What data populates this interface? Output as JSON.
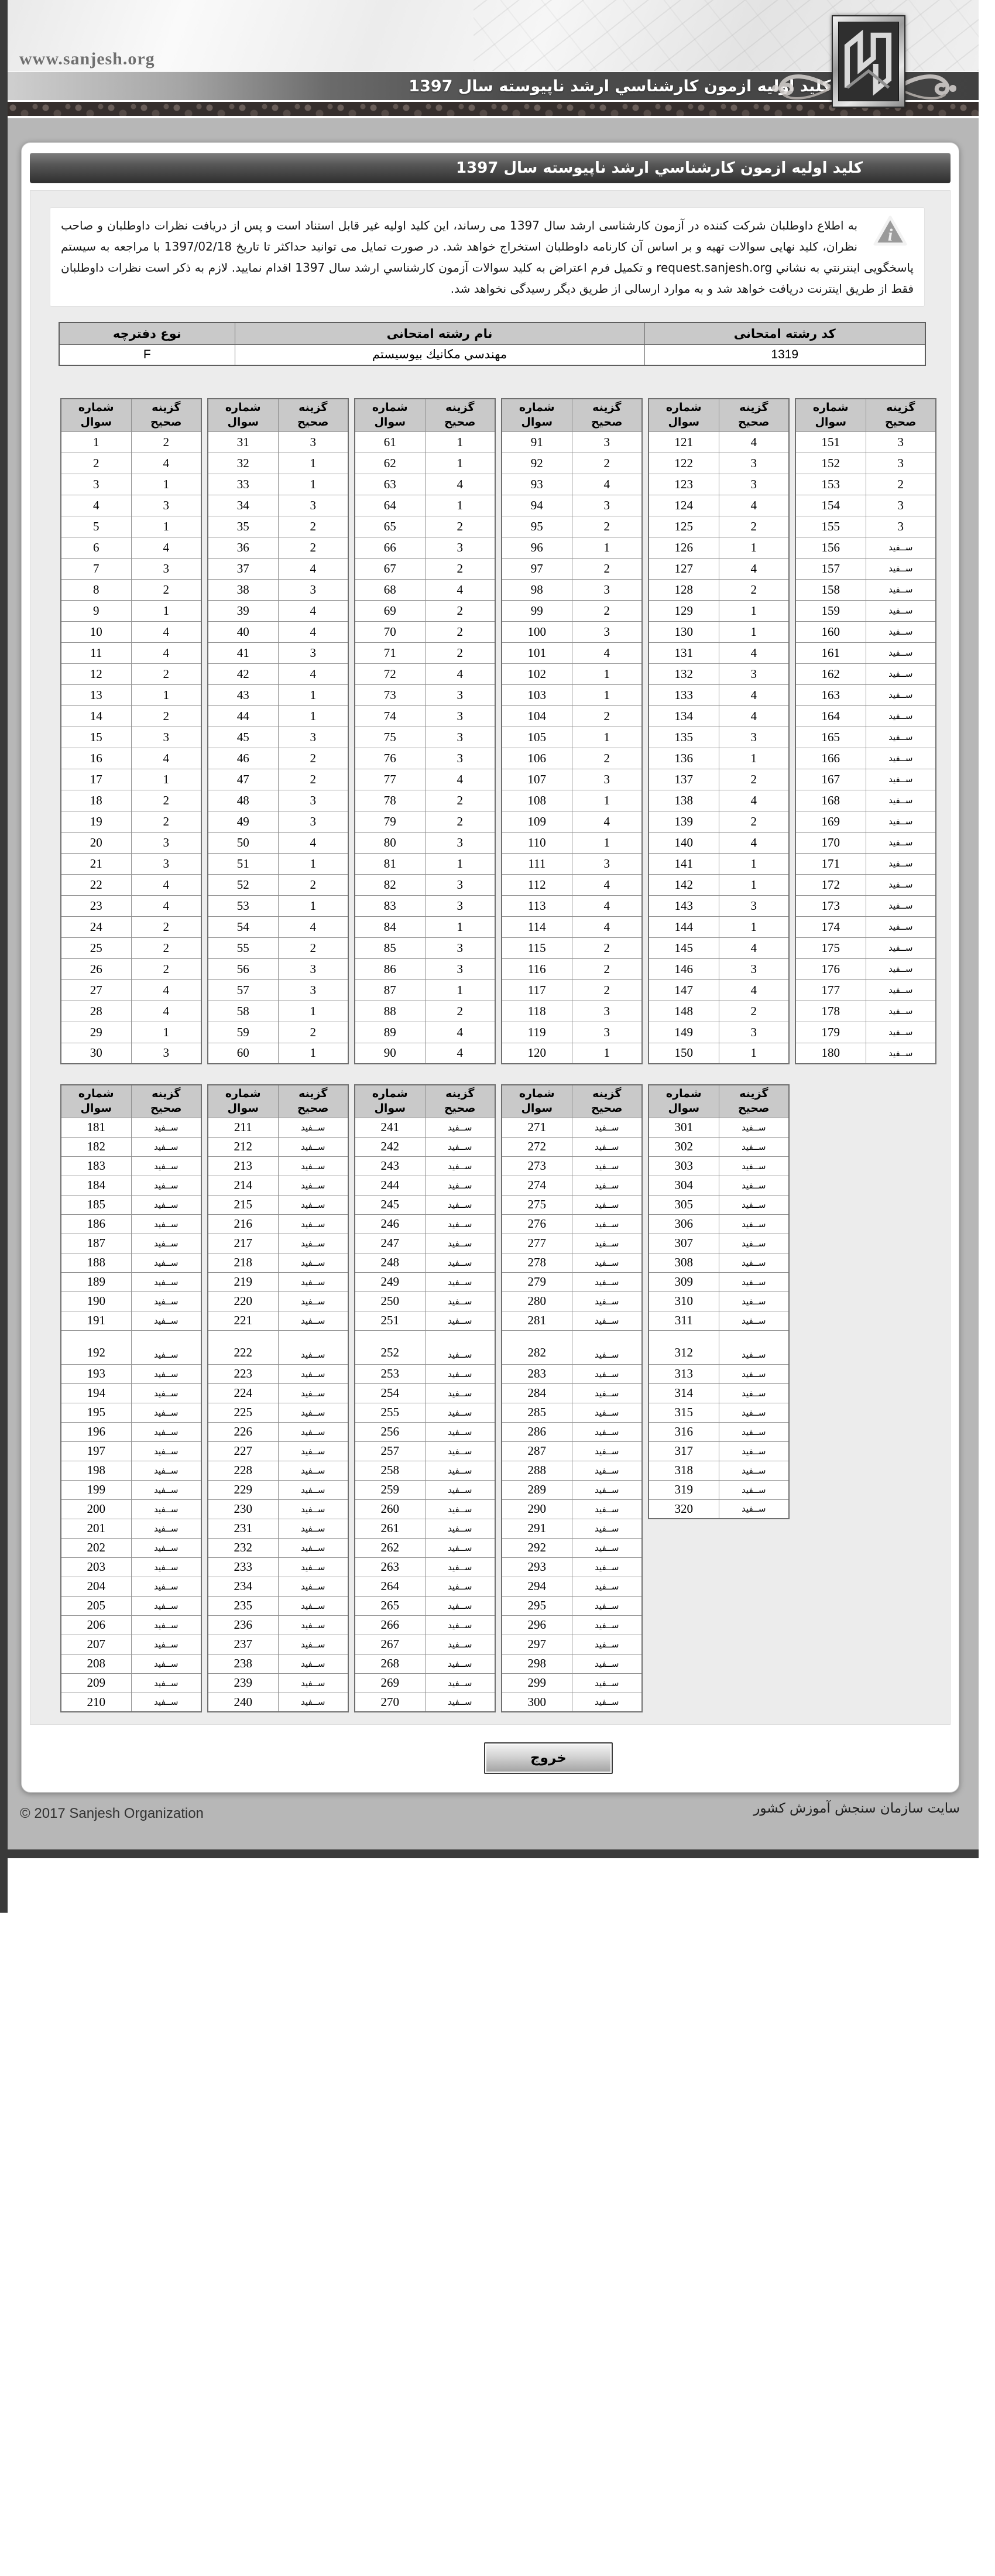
{
  "page": {
    "url_label": "www.sanjesh.org",
    "banner_title": "کلید اولیه ازمون کارشناسي ارشد ناپیوسته سال 1397",
    "content_title": "کلید اولیه ازمون کارشناسي ارشد ناپیوسته سال 1397",
    "notice": "به اطلاع داوطلبان شرکت کننده در آزمون کارشناسی ارشد سال 1397 می رساند، این کلید اولیه غیر قابل استناد است و پس از دریافت نظرات داوطلبان و صاحب نظران، کلید نهایی سوالات تهیه و بر اساس آن کارنامه داوطلبان استخراج خواهد شد. در صورت تمایل می توانید حداکثر تا تاریخ 1397/02/18 با مراجعه به سیستم پاسخگویی اینترنتي به نشاني request.sanjesh.org و تکمیل فرم اعتراض به کلید سوالات آزمون کارشناسي ارشد سال 1397 اقدام نمایید. لازم به ذکر است نظرات داوطلبان فقط از طریق اینترنت دریافت خواهد شد و به موارد ارسالی از طریق دیگر رسیدگی نخواهد شد."
  },
  "info_table": {
    "headers": [
      "کد رشته امتحانی",
      "نام رشته امتحانی",
      "نوع دفترچه"
    ],
    "values": [
      "1319",
      "مهندسي مکانیك بیوسیستم",
      "F"
    ]
  },
  "key_labels": {
    "question": "شماره سوال",
    "choice": "گزینه صحیح",
    "blank": "ســفید"
  },
  "key_sections": [
    {
      "tall_row_index": -1,
      "pairs": [
        {
          "start": 1,
          "answers": [
            "2",
            "4",
            "1",
            "3",
            "1",
            "4",
            "3",
            "2",
            "1",
            "4",
            "4",
            "2",
            "1",
            "2",
            "3",
            "4",
            "1",
            "2",
            "2",
            "3",
            "3",
            "4",
            "4",
            "2",
            "2",
            "2",
            "4",
            "4",
            "1",
            "3"
          ]
        },
        {
          "start": 31,
          "answers": [
            "3",
            "1",
            "1",
            "3",
            "2",
            "2",
            "4",
            "3",
            "4",
            "4",
            "3",
            "4",
            "1",
            "1",
            "3",
            "2",
            "2",
            "3",
            "3",
            "4",
            "1",
            "2",
            "1",
            "4",
            "2",
            "3",
            "3",
            "1",
            "2",
            "1"
          ]
        },
        {
          "start": 61,
          "answers": [
            "1",
            "1",
            "4",
            "1",
            "2",
            "3",
            "2",
            "4",
            "2",
            "2",
            "2",
            "4",
            "3",
            "3",
            "3",
            "3",
            "4",
            "2",
            "2",
            "3",
            "1",
            "3",
            "3",
            "1",
            "3",
            "3",
            "1",
            "2",
            "4",
            "4"
          ]
        },
        {
          "start": 91,
          "answers": [
            "3",
            "2",
            "4",
            "3",
            "2",
            "1",
            "2",
            "3",
            "2",
            "3",
            "4",
            "1",
            "1",
            "2",
            "1",
            "2",
            "3",
            "1",
            "4",
            "1",
            "3",
            "4",
            "4",
            "4",
            "2",
            "2",
            "2",
            "3",
            "3",
            "1"
          ]
        },
        {
          "start": 121,
          "answers": [
            "4",
            "3",
            "3",
            "4",
            "2",
            "1",
            "4",
            "2",
            "1",
            "1",
            "4",
            "3",
            "4",
            "4",
            "3",
            "1",
            "2",
            "4",
            "2",
            "4",
            "1",
            "1",
            "3",
            "1",
            "4",
            "3",
            "4",
            "2",
            "3",
            "1"
          ]
        },
        {
          "start": 151,
          "answers": [
            "3",
            "3",
            "2",
            "3",
            "3",
            "",
            "",
            "",
            "",
            "",
            "",
            "",
            "",
            "",
            "",
            "",
            "",
            "",
            "",
            "",
            "",
            "",
            "",
            "",
            "",
            "",
            "",
            "",
            "",
            ""
          ]
        }
      ]
    },
    {
      "tall_row_index": 11,
      "pairs": [
        {
          "start": 181,
          "count": 30
        },
        {
          "start": 211,
          "count": 30
        },
        {
          "start": 241,
          "count": 30
        },
        {
          "start": 271,
          "count": 30
        },
        {
          "start": 301,
          "count": 20
        }
      ]
    }
  ],
  "button": {
    "label": "خروج"
  },
  "footer": {
    "left": "© 2017 Sanjesh Organization",
    "right": "سایت سازمان سنجش آموزش کشور"
  }
}
